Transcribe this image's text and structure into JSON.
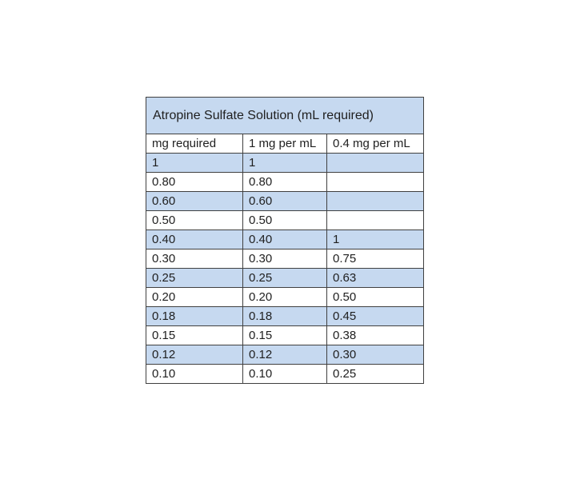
{
  "document": {
    "background_color": "#ffffff"
  },
  "table": {
    "title": "Atropine Sulfate Solution (mL required)",
    "columns": [
      "mg required",
      "1 mg per mL",
      "0.4 mg per mL"
    ],
    "rows": [
      [
        "1",
        "1",
        ""
      ],
      [
        "0.80",
        "0.80",
        ""
      ],
      [
        "0.60",
        "0.60",
        ""
      ],
      [
        "0.50",
        "0.50",
        ""
      ],
      [
        "0.40",
        "0.40",
        "1"
      ],
      [
        "0.30",
        "0.30",
        "0.75"
      ],
      [
        "0.25",
        "0.25",
        "0.63"
      ],
      [
        "0.20",
        "0.20",
        "0.50"
      ],
      [
        "0.18",
        "0.18",
        "0.45"
      ],
      [
        "0.15",
        "0.15",
        "0.38"
      ],
      [
        "0.12",
        "0.12",
        "0.30"
      ],
      [
        "0.10",
        "0.10",
        "0.25"
      ]
    ],
    "shaded_row_indices": [
      0,
      2,
      4,
      6,
      8,
      10
    ],
    "colors": {
      "title_background": "#c6d9f0",
      "shaded_row_background": "#c6d9f0",
      "plain_row_background": "#ffffff",
      "border": "#404040",
      "text": "#1f1f1f"
    }
  }
}
